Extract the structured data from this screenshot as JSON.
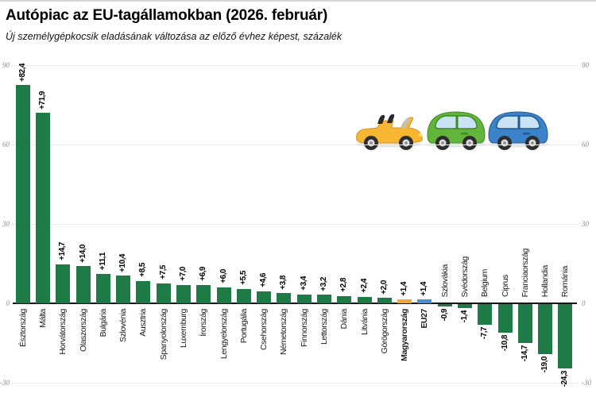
{
  "chart_data": {
    "type": "bar",
    "title": "Autópiac az EU-tagállamokban (2026. február)",
    "subtitle": "Új személygépkocsik eladásának változása az előző évhez képest, százalék",
    "categories": [
      "Észtország",
      "Málta",
      "Horvátország",
      "Olaszország",
      "Bulgária",
      "Szlovénia",
      "Ausztria",
      "Spanyolország",
      "Luxemburg",
      "Írország",
      "Lengyelország",
      "Portugália",
      "Csehország",
      "Németország",
      "Finnország",
      "Lettország",
      "Dánia",
      "Litvánia",
      "Görögország",
      "Magyarország",
      "EU27",
      "Szlovákia",
      "Svédország",
      "Belgium",
      "Ciprus",
      "Franciaország",
      "Hollandia",
      "Románia"
    ],
    "values": [
      82.4,
      71.9,
      14.7,
      14.0,
      11.1,
      10.4,
      8.5,
      7.5,
      7.0,
      6.9,
      6.0,
      5.5,
      4.6,
      3.8,
      3.4,
      3.2,
      2.8,
      2.4,
      2.0,
      1.4,
      1.4,
      -0.9,
      -1.4,
      -7.7,
      -10.8,
      -14.7,
      -19.0,
      -24.3
    ],
    "value_labels": [
      "+82,4",
      "+71,9",
      "+14,7",
      "+14,0",
      "+11,1",
      "+10,4",
      "+8,5",
      "+7,5",
      "+7,0",
      "+6,9",
      "+6,0",
      "+5,5",
      "+4,6",
      "+3,8",
      "+3,4",
      "+3,2",
      "+2,8",
      "+2,4",
      "+2,0",
      "+1,4",
      "+1,4",
      "-0,9",
      "-1,4",
      "-7,7",
      "-10,8",
      "-14,7",
      "-19,0",
      "-24,3"
    ],
    "bold_categories": [
      "Magyarország",
      "EU27"
    ],
    "highlight_colors": {
      "Magyarország": "#f0a838",
      "EU27": "#4a8fd2"
    },
    "colors": {
      "bar_default": "#1e7b45",
      "grid": "#e9e9e9",
      "axis_line": "#161616",
      "tick_text": "#8a8a8a"
    },
    "ylim": [
      -30,
      90
    ],
    "yticks": [
      90,
      60,
      30,
      0,
      -30
    ],
    "grid": true,
    "legend_position": "none",
    "tick_label_sides": "left-and-right",
    "xlabel": "",
    "ylabel": ""
  },
  "decorations": {
    "car_icons": [
      "yellow-convertible",
      "green-car",
      "blue-car"
    ]
  }
}
